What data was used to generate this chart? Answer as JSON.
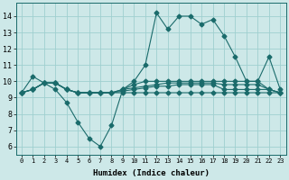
{
  "xlabel": "Humidex (Indice chaleur)",
  "xlim": [
    -0.5,
    23.5
  ],
  "ylim": [
    5.5,
    14.8
  ],
  "yticks": [
    6,
    7,
    8,
    9,
    10,
    11,
    12,
    13,
    14
  ],
  "xticks": [
    0,
    1,
    2,
    3,
    4,
    5,
    6,
    7,
    8,
    9,
    10,
    11,
    12,
    13,
    14,
    15,
    16,
    17,
    18,
    19,
    20,
    21,
    22,
    23
  ],
  "bg_color": "#cde8e8",
  "grid_color": "#9fcfcf",
  "line_color": "#1a6b6b",
  "series": [
    [
      9.3,
      10.3,
      9.9,
      9.5,
      8.7,
      7.5,
      6.5,
      6.0,
      7.3,
      9.5,
      10.0,
      11.0,
      14.2,
      13.2,
      14.0,
      14.0,
      13.5,
      13.8,
      12.8,
      11.5,
      10.0,
      10.0,
      11.5,
      9.5
    ],
    [
      9.3,
      9.5,
      9.9,
      9.9,
      9.5,
      9.3,
      9.3,
      9.3,
      9.3,
      9.3,
      9.3,
      9.3,
      9.3,
      9.3,
      9.3,
      9.3,
      9.3,
      9.3,
      9.3,
      9.3,
      9.3,
      9.3,
      9.3,
      9.3
    ],
    [
      9.3,
      9.5,
      9.9,
      9.9,
      9.5,
      9.3,
      9.3,
      9.3,
      9.3,
      9.4,
      9.5,
      9.6,
      9.7,
      9.7,
      9.8,
      9.8,
      9.8,
      9.8,
      9.5,
      9.5,
      9.5,
      9.5,
      9.5,
      9.3
    ],
    [
      9.3,
      9.5,
      9.9,
      9.9,
      9.5,
      9.3,
      9.3,
      9.3,
      9.3,
      9.5,
      9.6,
      9.7,
      9.8,
      9.9,
      9.9,
      9.9,
      9.9,
      9.9,
      9.8,
      9.8,
      9.8,
      9.8,
      9.5,
      9.3
    ],
    [
      9.3,
      9.5,
      9.9,
      9.9,
      9.5,
      9.3,
      9.3,
      9.3,
      9.3,
      9.5,
      9.8,
      10.0,
      10.0,
      10.0,
      10.0,
      10.0,
      10.0,
      10.0,
      10.0,
      10.0,
      10.0,
      10.0,
      9.5,
      9.3
    ]
  ]
}
